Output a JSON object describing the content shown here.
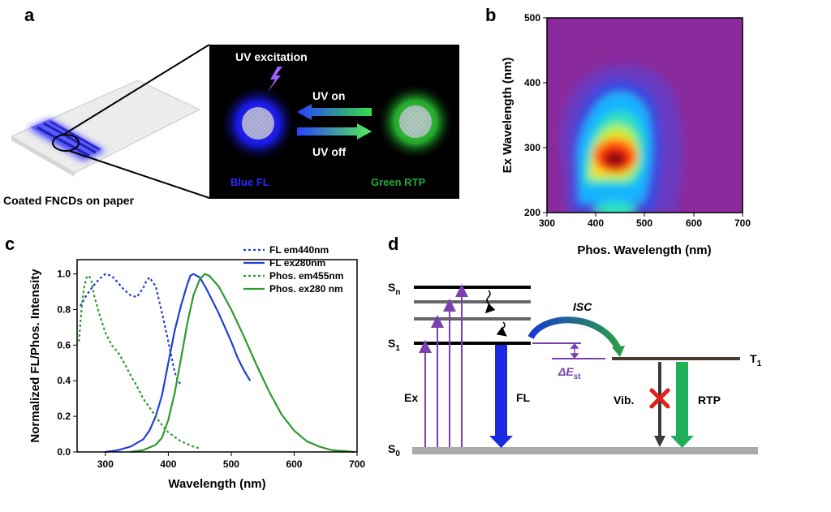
{
  "panel_labels": {
    "a": "a",
    "b": "b",
    "c": "c",
    "d": "d"
  },
  "panel_a": {
    "caption": "Coated FNCDs on paper",
    "uv_excitation": "UV excitation",
    "uv_on": "UV on",
    "uv_off": "UV off",
    "blue_label": "Blue FL",
    "green_label": "Green RTP",
    "colors": {
      "blue": "#1a1aff",
      "green": "#2ecc40",
      "blue_text": "#2a2aff",
      "green_text": "#22aa33"
    }
  },
  "panel_b": {
    "xlabel": "Phos. Wavelength (nm)",
    "ylabel": "Ex Wavelength (nm)",
    "xticks": [
      "300",
      "400",
      "500",
      "600",
      "700"
    ],
    "yticks": [
      "200",
      "300",
      "400",
      "500"
    ]
  },
  "panel_d": {
    "Sn_main": "S",
    "Sn_sub": "n",
    "S1_main": "S",
    "S1_sub": "1",
    "S0_main": "S",
    "S0_sub": "0",
    "T1_main": "T",
    "T1_sub": "1",
    "isc": "ISC",
    "dest_main": "ΔE",
    "dest_sub": "st",
    "ex": "Ex",
    "fl": "FL",
    "vib": "Vib.",
    "rtp": "RTP"
  },
  "chart_data": {
    "type": "line",
    "title": "",
    "xlabel": "Wavelength (nm)",
    "ylabel": "Normalized FL/Phos. Intensity",
    "xlim": [
      255,
      700
    ],
    "ylim": [
      0,
      1.08
    ],
    "xticks": [
      300,
      400,
      500,
      600,
      700
    ],
    "yticks": [
      0.0,
      0.2,
      0.4,
      0.6,
      0.8,
      1.0
    ],
    "legend_position": "top-right",
    "series": [
      {
        "name": "FL em440nm",
        "color": "#1f3fd6",
        "style": "dashed",
        "x": [
          260,
          270,
          280,
          290,
          300,
          310,
          320,
          330,
          340,
          350,
          360,
          365,
          370,
          380,
          390,
          400,
          410,
          415,
          420
        ],
        "y": [
          0.82,
          0.88,
          0.93,
          0.97,
          1.0,
          0.99,
          0.95,
          0.91,
          0.88,
          0.87,
          0.92,
          0.96,
          0.98,
          0.93,
          0.78,
          0.62,
          0.45,
          0.4,
          0.38
        ]
      },
      {
        "name": "FL ex280nm",
        "color": "#1f3fd6",
        "style": "solid",
        "x": [
          300,
          320,
          340,
          360,
          370,
          380,
          390,
          400,
          410,
          420,
          430,
          435,
          440,
          445,
          450,
          460,
          470,
          480,
          490,
          500,
          510,
          520,
          530
        ],
        "y": [
          0.0,
          0.01,
          0.03,
          0.07,
          0.12,
          0.2,
          0.32,
          0.5,
          0.68,
          0.82,
          0.94,
          0.99,
          1.0,
          0.99,
          0.98,
          0.92,
          0.85,
          0.78,
          0.7,
          0.62,
          0.53,
          0.46,
          0.4
        ]
      },
      {
        "name": "Phos. em455nm",
        "color": "#2e9a2e",
        "style": "dashed",
        "x": [
          258,
          262,
          266,
          270,
          274,
          278,
          282,
          290,
          300,
          310,
          320,
          330,
          340,
          350,
          360,
          370,
          380,
          390,
          400,
          420,
          440,
          450
        ],
        "y": [
          0.62,
          0.8,
          0.92,
          0.98,
          0.99,
          0.96,
          0.88,
          0.78,
          0.67,
          0.6,
          0.56,
          0.5,
          0.43,
          0.37,
          0.3,
          0.25,
          0.2,
          0.15,
          0.11,
          0.06,
          0.03,
          0.02
        ]
      },
      {
        "name": "Phos. ex280 nm",
        "color": "#2e9a2e",
        "style": "solid",
        "x": [
          340,
          360,
          380,
          390,
          400,
          410,
          420,
          430,
          440,
          450,
          458,
          465,
          480,
          500,
          520,
          540,
          560,
          580,
          600,
          620,
          640,
          660,
          680,
          695
        ],
        "y": [
          0.0,
          0.01,
          0.04,
          0.08,
          0.18,
          0.33,
          0.52,
          0.72,
          0.88,
          0.97,
          1.0,
          0.99,
          0.93,
          0.8,
          0.65,
          0.49,
          0.34,
          0.21,
          0.12,
          0.06,
          0.03,
          0.01,
          0.005,
          0.0
        ]
      }
    ]
  }
}
